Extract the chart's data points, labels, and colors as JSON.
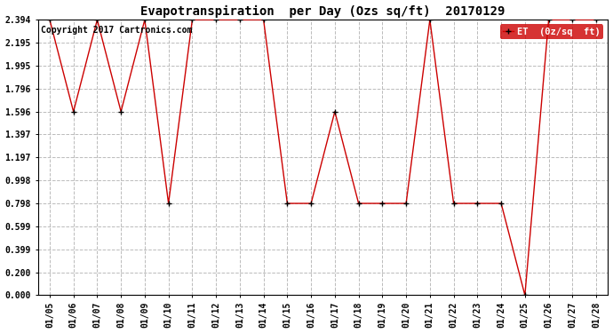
{
  "title": "Evapotranspiration  per Day (Ozs sq/ft)  20170129",
  "copyright": "Copyright 2017 Cartronics.com",
  "legend_label": "ET  (0z/sq  ft)",
  "dates": [
    "01/05",
    "01/06",
    "01/07",
    "01/08",
    "01/09",
    "01/10",
    "01/11",
    "01/12",
    "01/13",
    "01/14",
    "01/15",
    "01/16",
    "01/17",
    "01/18",
    "01/19",
    "01/20",
    "01/21",
    "01/22",
    "01/23",
    "01/24",
    "01/25",
    "01/26",
    "01/27",
    "01/28"
  ],
  "values": [
    2.394,
    1.596,
    2.394,
    1.596,
    2.394,
    0.798,
    2.394,
    2.394,
    2.394,
    2.394,
    0.798,
    0.798,
    1.596,
    0.798,
    0.798,
    0.798,
    2.394,
    0.798,
    0.798,
    0.798,
    0.0,
    2.394,
    2.394,
    2.394
  ],
  "yticks": [
    0.0,
    0.2,
    0.399,
    0.599,
    0.798,
    0.998,
    1.197,
    1.397,
    1.596,
    1.796,
    1.995,
    2.195,
    2.394
  ],
  "ylim": [
    0.0,
    2.394
  ],
  "xlim": [
    -0.5,
    23.5
  ],
  "line_color": "#cc0000",
  "marker_color": "black",
  "background_color": "white",
  "grid_color": "#bbbbbb",
  "title_fontsize": 10,
  "tick_fontsize": 7,
  "copyright_fontsize": 7,
  "legend_fontsize": 7.5,
  "legend_bg": "#cc0000",
  "legend_fg": "white"
}
